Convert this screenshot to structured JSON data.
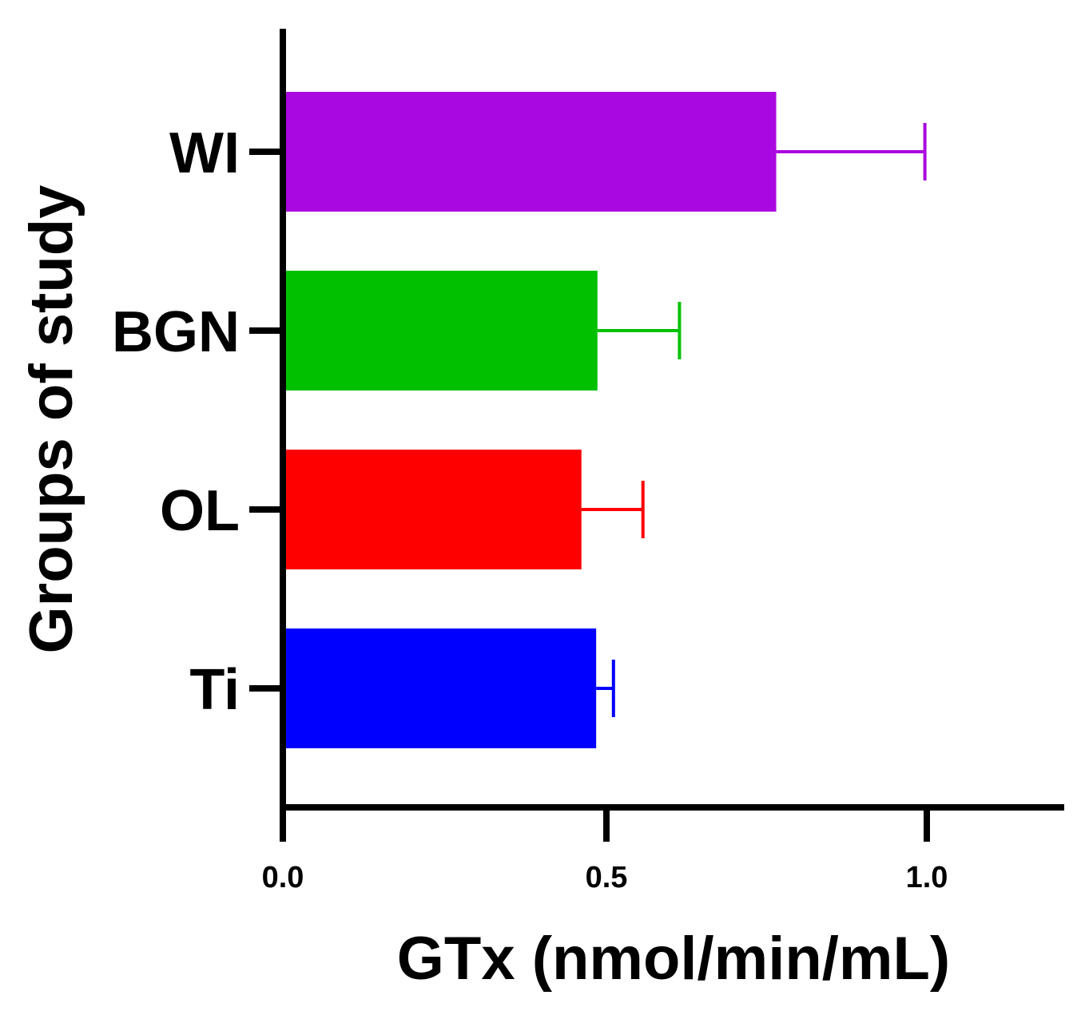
{
  "chart_data": {
    "type": "bar",
    "orientation": "horizontal",
    "title": "",
    "xlabel": "GTx (nmol/min/mL)",
    "ylabel": "Groups of study",
    "xlim": [
      0,
      1.22
    ],
    "xticks": [
      0.0,
      0.5,
      1.0
    ],
    "xtick_labels": [
      "0.0",
      "0.5",
      "1.0"
    ],
    "categories": [
      "WI",
      "BGN",
      "OL",
      "Ti"
    ],
    "values": [
      0.765,
      0.486,
      0.461,
      0.484
    ],
    "errors": [
      0.232,
      0.128,
      0.096,
      0.027
    ],
    "colors": [
      "#AA08E0",
      "#00C000",
      "#FF0000",
      "#0000FF"
    ],
    "grid": false,
    "legend": "none"
  }
}
